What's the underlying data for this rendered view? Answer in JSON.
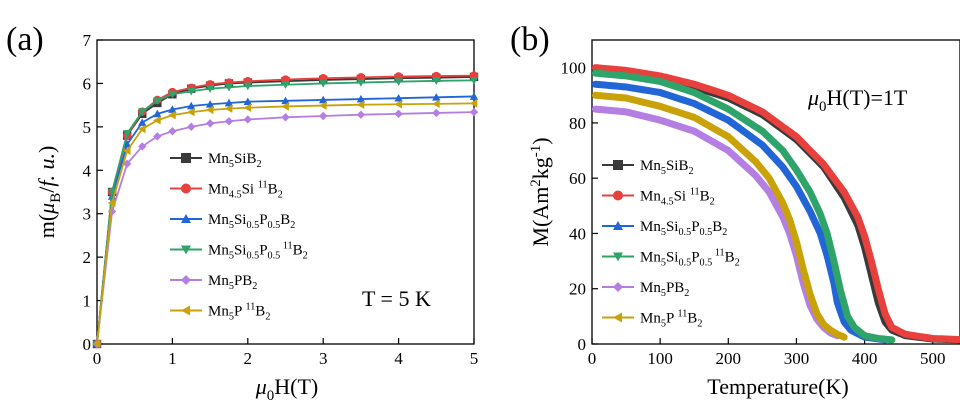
{
  "panel_a_label": "(a)",
  "panel_b_label": "(b)",
  "chart_data": [
    {
      "type": "line",
      "panel": "(a)",
      "xlabel_parts": [
        "μ",
        "0",
        "H(T)"
      ],
      "ylabel_parts": [
        "m(",
        "μ",
        "B",
        "/",
        "f. u.",
        ")"
      ],
      "xlim": [
        0,
        5
      ],
      "ylim": [
        0,
        7
      ],
      "xticks": [
        0,
        1,
        2,
        3,
        4,
        5
      ],
      "yticks": [
        0,
        1,
        2,
        3,
        4,
        5,
        6,
        7
      ],
      "annotation": "T = 5 K",
      "legend_position": "center",
      "series": [
        {
          "name_parts": [
            "Mn",
            "5",
            "SiB",
            "2"
          ],
          "color": "#3a3a3a",
          "marker": "square",
          "x": [
            0,
            0.2,
            0.4,
            0.6,
            0.8,
            1.0,
            1.25,
            1.5,
            1.75,
            2.0,
            2.5,
            3.0,
            3.5,
            4.0,
            4.5,
            5.0
          ],
          "y": [
            0,
            3.5,
            4.8,
            5.3,
            5.55,
            5.75,
            5.88,
            5.95,
            6.0,
            6.02,
            6.05,
            6.08,
            6.1,
            6.12,
            6.13,
            6.15
          ]
        },
        {
          "name_parts": [
            "Mn",
            "4.5",
            "Si ",
            "11",
            "B",
            "2"
          ],
          "color": "#e8403d",
          "marker": "circle",
          "x": [
            0,
            0.2,
            0.4,
            0.6,
            0.8,
            1.0,
            1.25,
            1.5,
            1.75,
            2.0,
            2.5,
            3.0,
            3.5,
            4.0,
            4.5,
            5.0
          ],
          "y": [
            0,
            3.5,
            4.8,
            5.35,
            5.62,
            5.8,
            5.9,
            5.98,
            6.02,
            6.05,
            6.09,
            6.12,
            6.14,
            6.16,
            6.17,
            6.18
          ]
        },
        {
          "name_parts": [
            "Mn",
            "5",
            "Si",
            "0.5",
            "P",
            "0.5",
            "B",
            "2"
          ],
          "color": "#2265d6",
          "marker": "triangle-up",
          "x": [
            0,
            0.2,
            0.4,
            0.6,
            0.8,
            1.0,
            1.25,
            1.5,
            1.75,
            2.0,
            2.5,
            3.0,
            3.5,
            4.0,
            4.5,
            5.0
          ],
          "y": [
            0,
            3.4,
            4.6,
            5.1,
            5.3,
            5.4,
            5.48,
            5.52,
            5.55,
            5.58,
            5.6,
            5.62,
            5.64,
            5.66,
            5.68,
            5.7
          ]
        },
        {
          "name_parts": [
            "Mn",
            "5",
            "Si",
            "0.5",
            "P",
            "0.5",
            " 11",
            "B",
            "2"
          ],
          "color": "#2ea36a",
          "marker": "triangle-down",
          "x": [
            0,
            0.2,
            0.4,
            0.6,
            0.8,
            1.0,
            1.25,
            1.5,
            1.75,
            2.0,
            2.5,
            3.0,
            3.5,
            4.0,
            4.5,
            5.0
          ],
          "y": [
            0,
            3.5,
            4.85,
            5.35,
            5.6,
            5.75,
            5.82,
            5.88,
            5.91,
            5.94,
            5.97,
            6.0,
            6.02,
            6.04,
            6.06,
            6.07
          ]
        },
        {
          "name_parts": [
            "Mn",
            "5",
            "PB",
            "2"
          ],
          "color": "#b47ee3",
          "marker": "diamond",
          "x": [
            0,
            0.2,
            0.4,
            0.6,
            0.8,
            1.0,
            1.25,
            1.5,
            1.75,
            2.0,
            2.5,
            3.0,
            3.5,
            4.0,
            4.5,
            5.0
          ],
          "y": [
            0,
            3.05,
            4.15,
            4.55,
            4.78,
            4.9,
            5.0,
            5.08,
            5.13,
            5.17,
            5.22,
            5.25,
            5.28,
            5.3,
            5.32,
            5.34
          ]
        },
        {
          "name_parts": [
            "Mn",
            "5",
            "P ",
            "11",
            "B",
            "2"
          ],
          "color": "#c9a20a",
          "marker": "triangle-left",
          "x": [
            0,
            0.2,
            0.4,
            0.6,
            0.8,
            1.0,
            1.25,
            1.5,
            1.75,
            2.0,
            2.5,
            3.0,
            3.5,
            4.0,
            4.5,
            5.0
          ],
          "y": [
            0,
            3.25,
            4.45,
            4.95,
            5.15,
            5.27,
            5.34,
            5.39,
            5.42,
            5.44,
            5.47,
            5.49,
            5.51,
            5.52,
            5.53,
            5.54
          ]
        }
      ]
    },
    {
      "type": "line",
      "panel": "(b)",
      "xlabel": "Temperature(K)",
      "ylabel_parts": [
        "M(Am",
        "2",
        "kg",
        "-1",
        ")"
      ],
      "xlim": [
        0,
        540
      ],
      "ylim": [
        0,
        110
      ],
      "xticks": [
        0,
        100,
        200,
        300,
        400,
        500
      ],
      "yticks": [
        0,
        20,
        40,
        60,
        80,
        100
      ],
      "annotation_parts": [
        "μ",
        "0",
        "H(T)=1T"
      ],
      "legend_position": "center-left",
      "series": [
        {
          "name_parts": [
            "Mn",
            "5",
            "SiB",
            "2"
          ],
          "color": "#3a3a3a",
          "marker": "square",
          "x": [
            5,
            50,
            100,
            150,
            200,
            250,
            300,
            340,
            370,
            390,
            400,
            410,
            420,
            430,
            440,
            460,
            500,
            540
          ],
          "y": [
            99,
            98,
            96,
            93,
            89,
            83,
            74,
            64,
            53,
            43,
            35,
            25,
            15,
            8,
            5,
            3,
            1.8,
            1.5
          ]
        },
        {
          "name_parts": [
            "Mn",
            "4.5",
            "Si ",
            "11",
            "B",
            "2"
          ],
          "color": "#e8403d",
          "marker": "circle",
          "x": [
            5,
            50,
            100,
            150,
            200,
            250,
            300,
            340,
            370,
            390,
            400,
            410,
            420,
            430,
            440,
            460,
            500,
            540
          ],
          "y": [
            100,
            99,
            97,
            94,
            90,
            84,
            75,
            65,
            55,
            46,
            39,
            30,
            20,
            11,
            6,
            3.5,
            2,
            1.6
          ]
        },
        {
          "name_parts": [
            "Mn",
            "5",
            "Si",
            "0.5",
            "P",
            "0.5",
            "B",
            "2"
          ],
          "color": "#2265d6",
          "marker": "triangle-up",
          "x": [
            5,
            50,
            100,
            150,
            200,
            250,
            280,
            300,
            320,
            335,
            345,
            355,
            360,
            370,
            380,
            400,
            430
          ],
          "y": [
            94,
            93,
            91,
            87,
            81,
            72,
            64,
            57,
            48,
            40,
            32,
            22,
            15,
            8,
            5,
            2.5,
            1.5
          ]
        },
        {
          "name_parts": [
            "Mn",
            "5",
            "Si",
            "0.5",
            "P",
            "0.5",
            " 11",
            "B",
            "2"
          ],
          "color": "#2ea36a",
          "marker": "triangle-down",
          "x": [
            5,
            50,
            100,
            150,
            200,
            250,
            280,
            300,
            320,
            335,
            345,
            355,
            365,
            375,
            385,
            400,
            420,
            440
          ],
          "y": [
            98,
            97,
            95,
            91,
            85,
            77,
            70,
            63,
            55,
            47,
            40,
            30,
            19,
            10,
            6,
            3,
            2,
            1.5
          ]
        },
        {
          "name_parts": [
            "Mn",
            "5",
            "PB",
            "2"
          ],
          "color": "#b47ee3",
          "marker": "diamond",
          "x": [
            5,
            50,
            100,
            150,
            200,
            240,
            260,
            280,
            290,
            300,
            310,
            320,
            330,
            340,
            350,
            360
          ],
          "y": [
            85,
            84,
            81,
            77,
            70,
            61,
            55,
            46,
            40,
            32,
            22,
            14,
            9,
            6,
            4,
            3
          ]
        },
        {
          "name_parts": [
            "Mn",
            "5",
            "P ",
            "11",
            "B",
            "2"
          ],
          "color": "#c9a20a",
          "marker": "triangle-left",
          "x": [
            5,
            50,
            100,
            150,
            200,
            240,
            260,
            280,
            290,
            300,
            310,
            320,
            330,
            340,
            350,
            360,
            370
          ],
          "y": [
            90,
            89,
            86,
            82,
            75,
            66,
            60,
            51,
            45,
            37,
            27,
            18,
            11,
            7,
            5,
            3.5,
            2.5
          ]
        }
      ]
    }
  ]
}
